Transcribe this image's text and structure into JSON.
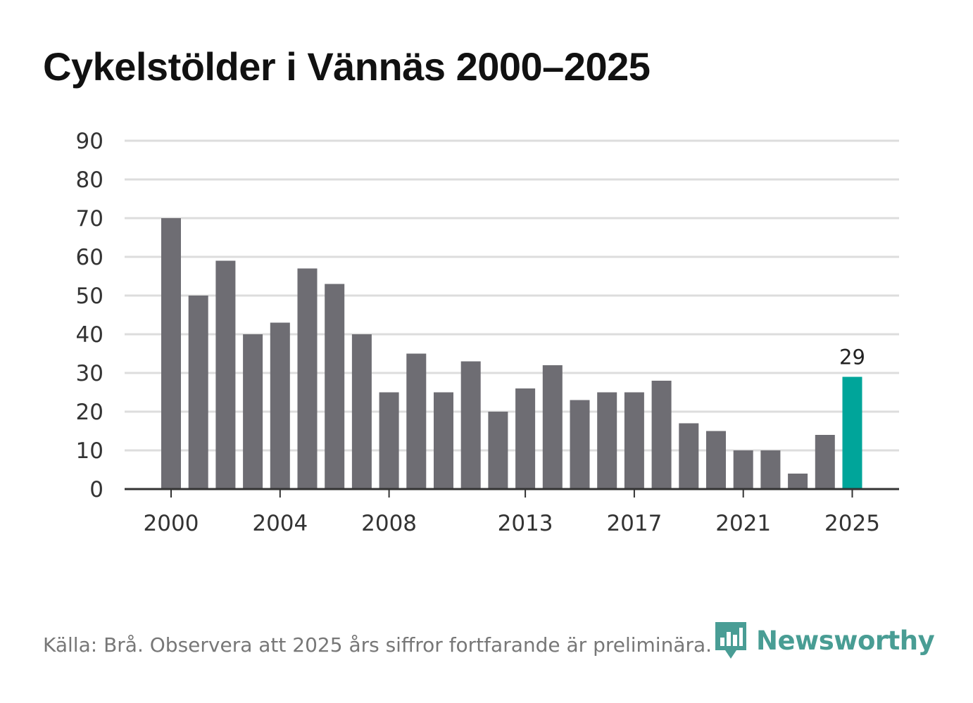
{
  "chart_data": {
    "type": "bar",
    "title": "Cykelstölder i Vännäs 2000–2025",
    "xlabel": "",
    "ylabel": "",
    "ylim": [
      0,
      90
    ],
    "yticks": [
      0,
      10,
      20,
      30,
      40,
      50,
      60,
      70,
      80,
      90
    ],
    "xtick_labels": [
      "2000",
      "2004",
      "2008",
      "2013",
      "2017",
      "2021",
      "2025"
    ],
    "grid": true,
    "categories": [
      "2000",
      "2001",
      "2002",
      "2003",
      "2004",
      "2005",
      "2006",
      "2007",
      "2008",
      "2009",
      "2010",
      "2011",
      "2012",
      "2013",
      "2014",
      "2015",
      "2016",
      "2017",
      "2018",
      "2019",
      "2020",
      "2021",
      "2022",
      "2023",
      "2024",
      "2025"
    ],
    "values": [
      70,
      50,
      59,
      40,
      43,
      57,
      53,
      40,
      25,
      35,
      25,
      33,
      20,
      26,
      32,
      23,
      25,
      25,
      28,
      17,
      15,
      10,
      10,
      4,
      14,
      29
    ],
    "highlight": {
      "category": "2025",
      "label": "29"
    },
    "colors": {
      "bar": "#6e6d73",
      "highlight": "#00a59a",
      "grid": "#dddddd",
      "axis": "#333333"
    }
  },
  "footer": {
    "source": "Källa: Brå. Observera att 2025 års siffror fortfarande är preliminära.",
    "brand": "Newsworthy",
    "brand_icon": "newsworthy-logo-icon",
    "brand_color": "#3a958c"
  }
}
